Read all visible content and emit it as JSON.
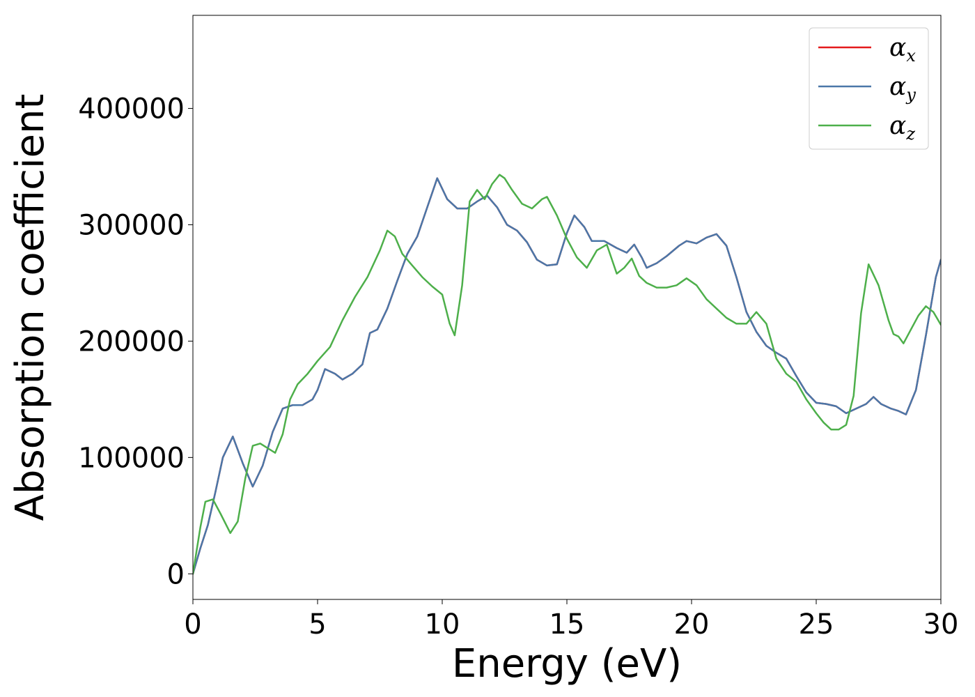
{
  "chart_data": {
    "type": "line",
    "title": "",
    "xlabel": "Energy (eV)",
    "ylabel": "Absorption coefficient",
    "xlim": [
      0,
      30
    ],
    "ylim": [
      -22000,
      480000
    ],
    "xticks": [
      0,
      5,
      10,
      15,
      20,
      25,
      30
    ],
    "xtick_labels": [
      "0",
      "5",
      "10",
      "15",
      "20",
      "25",
      "30"
    ],
    "yticks": [
      0,
      100000,
      200000,
      300000,
      400000
    ],
    "ytick_labels": [
      "0",
      "100000",
      "200000",
      "300000",
      "400000"
    ],
    "grid": false,
    "legend_position": "top-right",
    "series": [
      {
        "name": "α_x",
        "label_base": "α",
        "label_sub": "x",
        "color": "#e41a1c",
        "x": [
          0,
          0.3,
          0.6,
          0.9,
          1.2,
          1.6,
          2.0,
          2.4,
          2.8,
          3.2,
          3.6,
          4.0,
          4.4,
          4.8,
          5.0,
          5.3,
          5.7,
          6.0,
          6.4,
          6.8,
          7.1,
          7.4,
          7.8,
          8.2,
          8.6,
          9.0,
          9.4,
          9.8,
          10.2,
          10.6,
          11.0,
          11.4,
          11.8,
          12.2,
          12.6,
          13.0,
          13.4,
          13.8,
          14.2,
          14.6,
          15.0,
          15.3,
          15.7,
          16.0,
          16.5,
          17.0,
          17.4,
          17.7,
          18.0,
          18.2,
          18.6,
          19.0,
          19.5,
          19.8,
          20.2,
          20.6,
          21.0,
          21.4,
          21.8,
          22.2,
          22.6,
          23.0,
          23.4,
          23.8,
          24.2,
          24.6,
          25.0,
          25.4,
          25.8,
          26.2,
          26.6,
          27.0,
          27.3,
          27.6,
          28.0,
          28.3,
          28.6,
          29.0,
          29.4,
          29.8,
          30.0
        ],
        "y": [
          0,
          22000,
          42000,
          70000,
          100000,
          118000,
          95000,
          75000,
          93000,
          122000,
          142000,
          145000,
          145000,
          150000,
          158000,
          176000,
          172000,
          167000,
          172000,
          180000,
          207000,
          210000,
          228000,
          252000,
          275000,
          290000,
          315000,
          340000,
          322000,
          314000,
          314000,
          320000,
          325000,
          315000,
          300000,
          295000,
          285000,
          270000,
          265000,
          266000,
          293000,
          308000,
          298000,
          286000,
          286000,
          280000,
          276000,
          283000,
          272000,
          263000,
          267000,
          273000,
          282000,
          286000,
          284000,
          289000,
          292000,
          282000,
          255000,
          225000,
          208000,
          196000,
          190000,
          185000,
          170000,
          156000,
          147000,
          146000,
          144000,
          138000,
          142000,
          146000,
          152000,
          146000,
          142000,
          140000,
          137000,
          158000,
          205000,
          255000,
          270000
        ]
      },
      {
        "name": "α_y",
        "label_base": "α",
        "label_sub": "y",
        "color": "#4a77a8",
        "x": [
          0,
          0.3,
          0.6,
          0.9,
          1.2,
          1.6,
          2.0,
          2.4,
          2.8,
          3.2,
          3.6,
          4.0,
          4.4,
          4.8,
          5.0,
          5.3,
          5.7,
          6.0,
          6.4,
          6.8,
          7.1,
          7.4,
          7.8,
          8.2,
          8.6,
          9.0,
          9.4,
          9.8,
          10.2,
          10.6,
          11.0,
          11.4,
          11.8,
          12.2,
          12.6,
          13.0,
          13.4,
          13.8,
          14.2,
          14.6,
          15.0,
          15.3,
          15.7,
          16.0,
          16.5,
          17.0,
          17.4,
          17.7,
          18.0,
          18.2,
          18.6,
          19.0,
          19.5,
          19.8,
          20.2,
          20.6,
          21.0,
          21.4,
          21.8,
          22.2,
          22.6,
          23.0,
          23.4,
          23.8,
          24.2,
          24.6,
          25.0,
          25.4,
          25.8,
          26.2,
          26.6,
          27.0,
          27.3,
          27.6,
          28.0,
          28.3,
          28.6,
          29.0,
          29.4,
          29.8,
          30.0
        ],
        "y": [
          0,
          22000,
          42000,
          70000,
          100000,
          118000,
          95000,
          75000,
          93000,
          122000,
          142000,
          145000,
          145000,
          150000,
          158000,
          176000,
          172000,
          167000,
          172000,
          180000,
          207000,
          210000,
          228000,
          252000,
          275000,
          290000,
          315000,
          340000,
          322000,
          314000,
          314000,
          320000,
          325000,
          315000,
          300000,
          295000,
          285000,
          270000,
          265000,
          266000,
          293000,
          308000,
          298000,
          286000,
          286000,
          280000,
          276000,
          283000,
          272000,
          263000,
          267000,
          273000,
          282000,
          286000,
          284000,
          289000,
          292000,
          282000,
          255000,
          225000,
          208000,
          196000,
          190000,
          185000,
          170000,
          156000,
          147000,
          146000,
          144000,
          138000,
          142000,
          146000,
          152000,
          146000,
          142000,
          140000,
          137000,
          158000,
          205000,
          255000,
          270000
        ]
      },
      {
        "name": "α_z",
        "label_base": "α",
        "label_sub": "z",
        "color": "#4daf4a",
        "x": [
          0,
          0.3,
          0.5,
          0.8,
          1.1,
          1.5,
          1.8,
          2.1,
          2.4,
          2.7,
          3.0,
          3.3,
          3.6,
          3.9,
          4.2,
          4.6,
          5.0,
          5.5,
          6.0,
          6.5,
          7.0,
          7.5,
          7.8,
          8.1,
          8.4,
          8.8,
          9.2,
          9.6,
          10.0,
          10.3,
          10.5,
          10.8,
          11.1,
          11.4,
          11.7,
          12.0,
          12.3,
          12.5,
          12.8,
          13.2,
          13.6,
          14.0,
          14.2,
          14.6,
          15.0,
          15.4,
          15.8,
          16.2,
          16.6,
          17.0,
          17.3,
          17.6,
          17.9,
          18.2,
          18.6,
          19.0,
          19.4,
          19.8,
          20.2,
          20.6,
          21.0,
          21.4,
          21.8,
          22.2,
          22.6,
          23.0,
          23.4,
          23.8,
          24.2,
          24.6,
          25.0,
          25.3,
          25.6,
          25.9,
          26.2,
          26.5,
          26.8,
          27.1,
          27.5,
          27.9,
          28.1,
          28.3,
          28.5,
          28.8,
          29.1,
          29.4,
          29.7,
          30.0
        ],
        "y": [
          0,
          40000,
          62000,
          64000,
          52000,
          35000,
          45000,
          82000,
          110000,
          112000,
          108000,
          104000,
          120000,
          150000,
          163000,
          172000,
          183000,
          195000,
          218000,
          238000,
          255000,
          278000,
          295000,
          290000,
          275000,
          265000,
          255000,
          247000,
          240000,
          215000,
          205000,
          248000,
          320000,
          330000,
          322000,
          335000,
          343000,
          340000,
          330000,
          318000,
          314000,
          322000,
          324000,
          308000,
          288000,
          272000,
          263000,
          278000,
          283000,
          258000,
          263000,
          271000,
          256000,
          250000,
          246000,
          246000,
          248000,
          254000,
          248000,
          236000,
          228000,
          220000,
          215000,
          215000,
          225000,
          215000,
          185000,
          172000,
          165000,
          150000,
          138000,
          130000,
          124000,
          124000,
          128000,
          153000,
          224000,
          266000,
          248000,
          218000,
          206000,
          204000,
          198000,
          210000,
          222000,
          230000,
          225000,
          214000
        ]
      }
    ]
  }
}
